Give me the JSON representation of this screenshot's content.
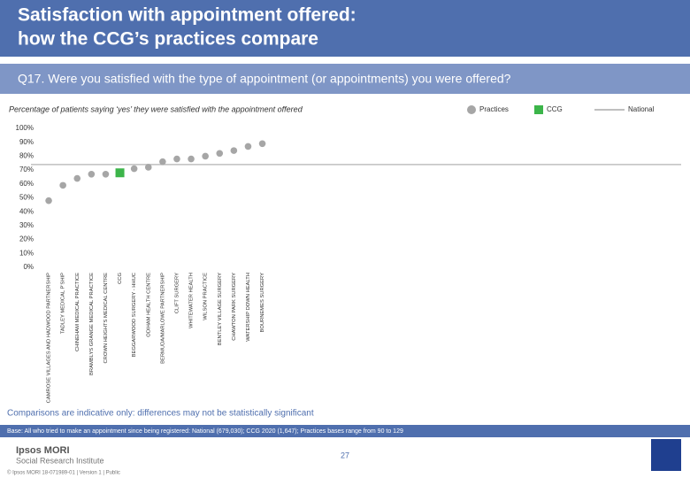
{
  "header": {
    "title_lines": [
      "Satisfaction with appointment offered:",
      "how the CCG’s practices compare"
    ]
  },
  "question": "Q17. Were you satisfied with the type of appointment (or appointments) you were offered?",
  "chart_data": {
    "type": "scatter",
    "subtitle": "Percentage of patients saying ‘yes’ they were satisfied with the appointment offered",
    "categories": [
      "CAMROSE VILLAGES AND HADWOOD PARTNERSHIP",
      "TADLEY MEDICAL P'SHIP",
      "CHINEHAM MEDICAL PRACTICE",
      "BRAMBLYS GRANGE MEDICAL PRACTICE",
      "CROWN HEIGHTS MEDICAL CENTRE",
      "CCG",
      "BEGGARWOOD SURGERY - HHUC",
      "ODIHAM HEALTH CENTRE",
      "BERMUDA/MARLOWE PARTNERSHIP",
      "CLIFT SURGERY",
      "WHITEWATER HEALTH",
      "WILSON PRACTICE",
      "BENTLEY VILLAGE SURGERY",
      "CHAWTON PARK SURGERY",
      "WATERSHIP DOWN HEALTH",
      "BOURNEMES SURGERY"
    ],
    "series": [
      {
        "name": "Practices",
        "color": "#a6a6a6",
        "marker": "circle",
        "values": [
          48,
          59,
          64,
          67,
          67,
          null,
          71,
          72,
          76,
          78,
          78,
          80,
          82,
          84,
          87,
          89
        ]
      },
      {
        "name": "CCG",
        "color": "#3cb54a",
        "marker": "square",
        "values": [
          null,
          null,
          null,
          null,
          null,
          68,
          null,
          null,
          null,
          null,
          null,
          null,
          null,
          null,
          null,
          null
        ]
      }
    ],
    "reference_lines": [
      {
        "name": "National",
        "color": "#bfbfbf",
        "value": 74
      }
    ],
    "ylim": [
      0,
      100
    ],
    "yticks": [
      {
        "value": 0,
        "label": "0%"
      },
      {
        "value": 10,
        "label": "10%"
      },
      {
        "value": 20,
        "label": "20%"
      },
      {
        "value": 30,
        "label": "30%"
      },
      {
        "value": 40,
        "label": "40%"
      },
      {
        "value": 50,
        "label": "50%"
      },
      {
        "value": 60,
        "label": "60%"
      },
      {
        "value": 70,
        "label": "70%"
      },
      {
        "value": 80,
        "label": "80%"
      },
      {
        "value": 90,
        "label": "90%"
      },
      {
        "value": 100,
        "label": "100%"
      }
    ],
    "grid": false
  },
  "footnote": "Comparisons are indicative only: differences may not be statistically significant",
  "base": "Base: All who tried to make an appointment since being registered: National (679,030); CCG 2020 (1,647); Practices bases range from 90 to 129",
  "page_number": "27",
  "logo": [
    "Ipsos MORI",
    "Social Research Institute"
  ],
  "copyright": "© Ipsos MORI     18-071989-01 | Version 1 | Public"
}
